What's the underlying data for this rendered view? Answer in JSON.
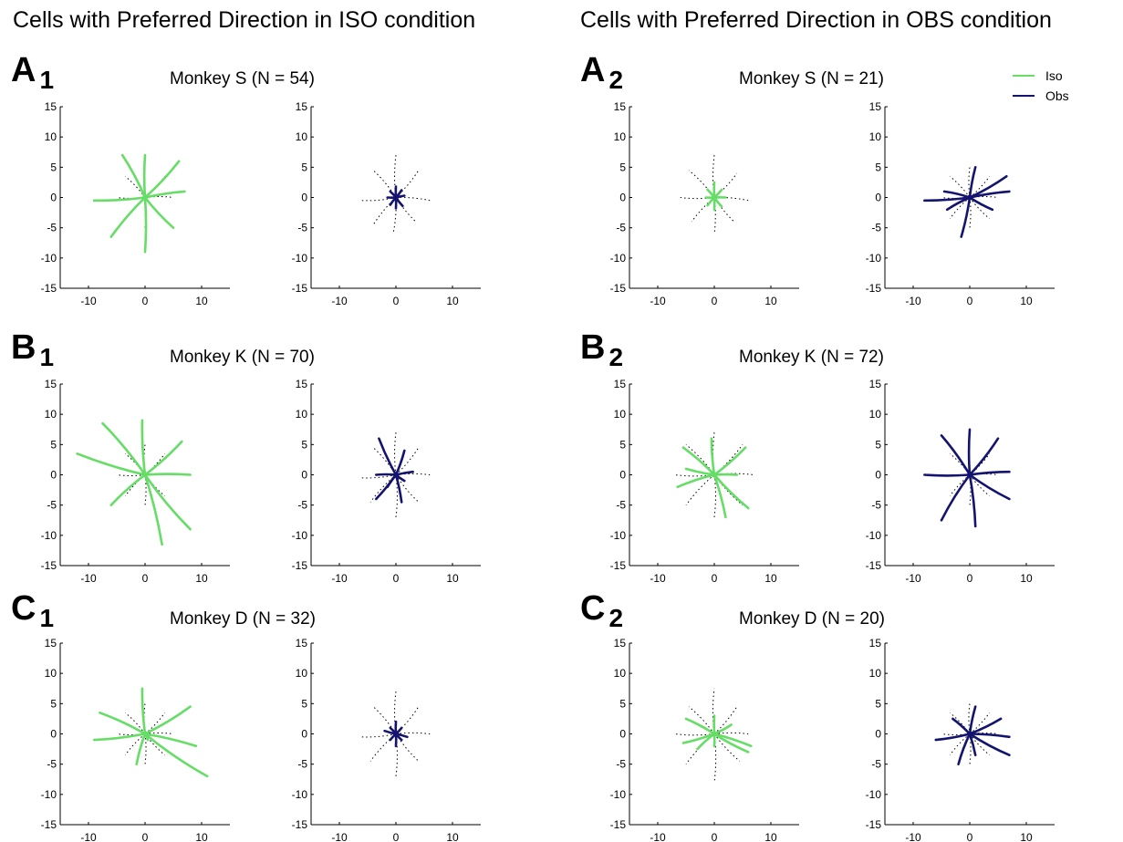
{
  "column_titles": [
    "Cells with Preferred Direction in ISO condition",
    "Cells with Preferred Direction in OBS condition"
  ],
  "legend": {
    "placement": "top-right",
    "items": [
      {
        "label": "Iso",
        "color": "#66dd66"
      },
      {
        "label": "Obs",
        "color": "#141470"
      }
    ]
  },
  "colors": {
    "iso": "#66dd66",
    "obs": "#141470",
    "dotted": "#000000"
  },
  "panels": [
    {
      "letter": "A",
      "sub": "1",
      "title": "Monkey S (N = 54)"
    },
    {
      "letter": "A",
      "sub": "2",
      "title": "Monkey S (N = 21)"
    },
    {
      "letter": "B",
      "sub": "1",
      "title": "Monkey K (N = 70)"
    },
    {
      "letter": "B",
      "sub": "2",
      "title": "Monkey K (N = 72)"
    },
    {
      "letter": "C",
      "sub": "1",
      "title": "Monkey D (N = 32)"
    },
    {
      "letter": "C",
      "sub": "2",
      "title": "Monkey D (N = 20)"
    }
  ],
  "chart_data": [
    {
      "type": "line",
      "panel": "A1",
      "condition": "Iso",
      "xlim": [
        -15,
        15
      ],
      "ylim": [
        -15,
        15
      ],
      "xticks": [
        -10,
        0,
        10
      ],
      "yticks": [
        15,
        10,
        5,
        0,
        -5,
        -10,
        -15
      ],
      "endpoints": [
        [
          7,
          1
        ],
        [
          6,
          6
        ],
        [
          0,
          7
        ],
        [
          -4,
          7
        ],
        [
          -9,
          -0.5
        ],
        [
          -6,
          -6.5
        ],
        [
          0,
          -9
        ],
        [
          5,
          -5
        ]
      ],
      "dotted_endpoints": [
        [
          5,
          0
        ],
        [
          3.5,
          3.5
        ],
        [
          0,
          5
        ],
        [
          -3.5,
          3.5
        ],
        [
          -5,
          0
        ],
        [
          -3.5,
          -3.5
        ],
        [
          0,
          -5
        ],
        [
          3.5,
          -3.5
        ]
      ]
    },
    {
      "type": "line",
      "panel": "A1",
      "condition": "Obs",
      "xlim": [
        -15,
        15
      ],
      "ylim": [
        -15,
        15
      ],
      "xticks": [
        -10,
        0,
        10
      ],
      "yticks": [
        15,
        10,
        5,
        0,
        -5,
        -10,
        -15
      ],
      "endpoints": [
        [
          1.5,
          0.3
        ],
        [
          1,
          1.2
        ],
        [
          0,
          1.8
        ],
        [
          -1,
          1
        ],
        [
          -1.5,
          0
        ],
        [
          -1,
          -1.2
        ],
        [
          0,
          -1.8
        ],
        [
          1.2,
          -1.4
        ]
      ],
      "dotted_endpoints": [
        [
          6,
          -0.5
        ],
        [
          4,
          4.5
        ],
        [
          0,
          7
        ],
        [
          -4,
          4.5
        ],
        [
          -6,
          -0.5
        ],
        [
          -4,
          -4.5
        ],
        [
          -0.5,
          -6
        ],
        [
          3.5,
          -4
        ]
      ]
    },
    {
      "type": "line",
      "panel": "A2",
      "condition": "Iso",
      "xlim": [
        -15,
        15
      ],
      "ylim": [
        -15,
        15
      ],
      "xticks": [
        -10,
        0,
        10
      ],
      "yticks": [
        15,
        10,
        5,
        0,
        -5,
        -10,
        -15
      ],
      "endpoints": [
        [
          2,
          0
        ],
        [
          1.3,
          1.3
        ],
        [
          0,
          2.5
        ],
        [
          -1.2,
          1.3
        ],
        [
          -1.5,
          0
        ],
        [
          -1.2,
          -1.3
        ],
        [
          0,
          -2
        ],
        [
          1.3,
          -1.5
        ]
      ],
      "dotted_endpoints": [
        [
          6,
          -0.5
        ],
        [
          4,
          4
        ],
        [
          0,
          7
        ],
        [
          -4.5,
          4.5
        ],
        [
          -6,
          0
        ],
        [
          -4,
          -4
        ],
        [
          0,
          -6
        ],
        [
          3.5,
          -4
        ]
      ]
    },
    {
      "type": "line",
      "panel": "A2",
      "condition": "Obs",
      "xlim": [
        -15,
        15
      ],
      "ylim": [
        -15,
        15
      ],
      "xticks": [
        -10,
        0,
        10
      ],
      "yticks": [
        15,
        10,
        5,
        0,
        -5,
        -10,
        -15
      ],
      "endpoints": [
        [
          7,
          1
        ],
        [
          6.5,
          3.5
        ],
        [
          1,
          5
        ],
        [
          -4.5,
          1
        ],
        [
          -8,
          -0.5
        ],
        [
          -4,
          -2
        ],
        [
          -1.5,
          -6.5
        ],
        [
          4,
          -2
        ]
      ],
      "dotted_endpoints": [
        [
          5,
          0
        ],
        [
          3.5,
          3.5
        ],
        [
          0,
          5
        ],
        [
          -3.5,
          3.5
        ],
        [
          -5,
          0
        ],
        [
          -3.5,
          -3.5
        ],
        [
          0,
          -5
        ],
        [
          3.5,
          -3.5
        ]
      ]
    },
    {
      "type": "line",
      "panel": "B1",
      "condition": "Iso",
      "xlim": [
        -15,
        15
      ],
      "ylim": [
        -15,
        15
      ],
      "xticks": [
        -10,
        0,
        10
      ],
      "yticks": [
        15,
        10,
        5,
        0,
        -5,
        -10,
        -15
      ],
      "endpoints": [
        [
          8,
          0
        ],
        [
          6.5,
          5.5
        ],
        [
          -0.5,
          9
        ],
        [
          -7.5,
          8.5
        ],
        [
          -12,
          3.5
        ],
        [
          -6,
          -5
        ],
        [
          3,
          -11.5
        ],
        [
          8,
          -9
        ]
      ],
      "dotted_endpoints": [
        [
          5,
          0
        ],
        [
          3.5,
          3.5
        ],
        [
          0,
          5
        ],
        [
          -3.5,
          3.5
        ],
        [
          -5,
          0
        ],
        [
          -3.5,
          -3.5
        ],
        [
          0,
          -5
        ],
        [
          3.5,
          -3.5
        ]
      ]
    },
    {
      "type": "line",
      "panel": "B1",
      "condition": "Obs",
      "xlim": [
        -15,
        15
      ],
      "ylim": [
        -15,
        15
      ],
      "xticks": [
        -10,
        0,
        10
      ],
      "yticks": [
        15,
        10,
        5,
        0,
        -5,
        -10,
        -15
      ],
      "endpoints": [
        [
          3,
          0.5
        ],
        [
          1.5,
          4
        ],
        [
          -3,
          6
        ],
        [
          -3.5,
          0
        ],
        [
          -3.5,
          -4
        ],
        [
          -1.5,
          -2
        ],
        [
          1,
          -4.5
        ],
        [
          1.5,
          -1
        ]
      ],
      "dotted_endpoints": [
        [
          6,
          0
        ],
        [
          4,
          4.5
        ],
        [
          0,
          7
        ],
        [
          -4,
          4.5
        ],
        [
          -6.5,
          -0.5
        ],
        [
          -4.5,
          -4.5
        ],
        [
          0,
          -7
        ],
        [
          4,
          -4.5
        ]
      ]
    },
    {
      "type": "line",
      "panel": "B2",
      "condition": "Iso",
      "xlim": [
        -15,
        15
      ],
      "ylim": [
        -15,
        15
      ],
      "xticks": [
        -10,
        0,
        10
      ],
      "yticks": [
        15,
        10,
        5,
        0,
        -5,
        -10,
        -15
      ],
      "endpoints": [
        [
          4,
          0
        ],
        [
          5.5,
          4.5
        ],
        [
          -0.5,
          6
        ],
        [
          -5.5,
          4.5
        ],
        [
          -5,
          1
        ],
        [
          -6.5,
          -2
        ],
        [
          2,
          -7
        ],
        [
          6,
          -5.5
        ]
      ],
      "dotted_endpoints": [
        [
          7,
          0
        ],
        [
          5,
          5
        ],
        [
          0,
          7
        ],
        [
          -5,
          5
        ],
        [
          -7,
          0
        ],
        [
          -5,
          -5
        ],
        [
          0,
          -7
        ],
        [
          5,
          -5
        ]
      ]
    },
    {
      "type": "line",
      "panel": "B2",
      "condition": "Obs",
      "xlim": [
        -15,
        15
      ],
      "ylim": [
        -15,
        15
      ],
      "xticks": [
        -10,
        0,
        10
      ],
      "yticks": [
        15,
        10,
        5,
        0,
        -5,
        -10,
        -15
      ],
      "endpoints": [
        [
          7,
          0.5
        ],
        [
          5,
          6
        ],
        [
          0,
          7.5
        ],
        [
          -5,
          6.5
        ],
        [
          -8,
          0
        ],
        [
          -5,
          -7.5
        ],
        [
          1,
          -8.5
        ],
        [
          7,
          -4
        ]
      ],
      "dotted_endpoints": [
        [
          5,
          0
        ],
        [
          3.5,
          3.5
        ],
        [
          0,
          5
        ],
        [
          -3.5,
          3.5
        ],
        [
          -5,
          0
        ],
        [
          -3.5,
          -3.5
        ],
        [
          0,
          -5
        ],
        [
          3.5,
          -3.5
        ]
      ]
    },
    {
      "type": "line",
      "panel": "C1",
      "condition": "Iso",
      "xlim": [
        -15,
        15
      ],
      "ylim": [
        -15,
        15
      ],
      "xticks": [
        -10,
        0,
        10
      ],
      "yticks": [
        15,
        10,
        5,
        0,
        -5,
        -10,
        -15
      ],
      "endpoints": [
        [
          9,
          -2
        ],
        [
          8,
          4.5
        ],
        [
          -0.5,
          7.5
        ],
        [
          -8,
          3.5
        ],
        [
          -9,
          -1
        ],
        [
          -1.5,
          -5
        ],
        [
          0.5,
          -1
        ],
        [
          11,
          -7
        ]
      ],
      "dotted_endpoints": [
        [
          5,
          0
        ],
        [
          3.5,
          3.5
        ],
        [
          0,
          5
        ],
        [
          -3.5,
          3.5
        ],
        [
          -5,
          0
        ],
        [
          -3.5,
          -3.5
        ],
        [
          0,
          -5
        ],
        [
          3.5,
          -3.5
        ]
      ]
    },
    {
      "type": "line",
      "panel": "C1",
      "condition": "Obs",
      "xlim": [
        -15,
        15
      ],
      "ylim": [
        -15,
        15
      ],
      "xticks": [
        -10,
        0,
        10
      ],
      "yticks": [
        15,
        10,
        5,
        0,
        -5,
        -10,
        -15
      ],
      "endpoints": [
        [
          2,
          -0.5
        ],
        [
          1,
          1
        ],
        [
          0,
          2
        ],
        [
          -1,
          1
        ],
        [
          -2,
          0.5
        ],
        [
          -1,
          -1
        ],
        [
          0,
          -2
        ],
        [
          1,
          -1
        ]
      ],
      "dotted_endpoints": [
        [
          6,
          0
        ],
        [
          4,
          4.5
        ],
        [
          0,
          7
        ],
        [
          -4,
          4.5
        ],
        [
          -6.5,
          -0.5
        ],
        [
          -4.5,
          -4.5
        ],
        [
          0,
          -7
        ],
        [
          4,
          -4.5
        ]
      ]
    },
    {
      "type": "line",
      "panel": "C2",
      "condition": "Iso",
      "xlim": [
        -15,
        15
      ],
      "ylim": [
        -15,
        15
      ],
      "xticks": [
        -10,
        0,
        10
      ],
      "yticks": [
        15,
        10,
        5,
        0,
        -5,
        -10,
        -15
      ],
      "endpoints": [
        [
          6.5,
          -2
        ],
        [
          3,
          1.5
        ],
        [
          0,
          3
        ],
        [
          -5,
          2.5
        ],
        [
          -5.5,
          -1.5
        ],
        [
          -3,
          -2.5
        ],
        [
          0,
          -2
        ],
        [
          6,
          -3
        ]
      ],
      "dotted_endpoints": [
        [
          6,
          0
        ],
        [
          4,
          4.5
        ],
        [
          0,
          7.5
        ],
        [
          -4.5,
          4.5
        ],
        [
          -7,
          0
        ],
        [
          -5,
          -5
        ],
        [
          0,
          -8
        ],
        [
          4.5,
          -4.5
        ]
      ]
    },
    {
      "type": "line",
      "panel": "C2",
      "condition": "Obs",
      "xlim": [
        -15,
        15
      ],
      "ylim": [
        -15,
        15
      ],
      "xticks": [
        -10,
        0,
        10
      ],
      "yticks": [
        15,
        10,
        5,
        0,
        -5,
        -10,
        -15
      ],
      "endpoints": [
        [
          7,
          -0.5
        ],
        [
          5.5,
          2.5
        ],
        [
          1,
          4.5
        ],
        [
          -3,
          2.5
        ],
        [
          -6,
          -1
        ],
        [
          -2,
          -5
        ],
        [
          1,
          -3.5
        ],
        [
          7,
          -3.5
        ]
      ],
      "dotted_endpoints": [
        [
          5,
          0
        ],
        [
          3.5,
          3.5
        ],
        [
          0,
          5
        ],
        [
          -3.5,
          3.5
        ],
        [
          -5,
          0
        ],
        [
          -3.5,
          -3.5
        ],
        [
          0,
          -5
        ],
        [
          3.5,
          -3.5
        ]
      ]
    }
  ]
}
